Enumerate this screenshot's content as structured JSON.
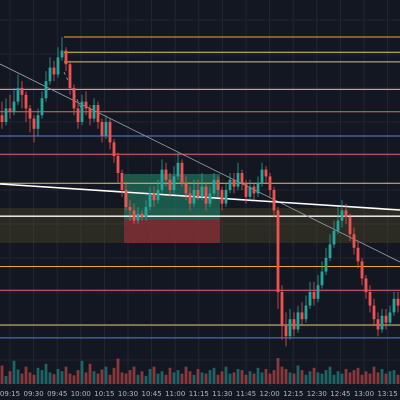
{
  "chart_data": {
    "type": "candlestick",
    "title": "",
    "xlabel": "",
    "ylabel": "",
    "x_tick_labels": [
      "09:15",
      "09:30",
      "09:45",
      "10:00",
      "10:15",
      "10:30",
      "10:45",
      "11:00",
      "11:15",
      "11:30",
      "11:45",
      "12:00",
      "12:15",
      "12:30",
      "12:45",
      "13:00",
      "13:15"
    ],
    "price_range": [
      0,
      100
    ],
    "grid": true,
    "legend": "none",
    "colors": {
      "background": "#131722",
      "grid": "#232632",
      "up": "#26a69a",
      "down": "#ef5350",
      "axis_text": "#b2b5be",
      "orange_level": "#f5a623",
      "yellow_level": "#d9c86a",
      "red_level": "#e06a6a",
      "blue_level": "#5b7fd6",
      "white_level": "#ffffff",
      "trendline": "#9aa0ad",
      "green_zone": "#1f6f5a",
      "red_zone": "#8a2f35",
      "yellow_band": "#4a4428"
    },
    "candles": [
      [
        72,
        70,
        76,
        68
      ],
      [
        70,
        74,
        77,
        69
      ],
      [
        74,
        73,
        78,
        71
      ],
      [
        73,
        76,
        80,
        72
      ],
      [
        76,
        80,
        84,
        75
      ],
      [
        80,
        78,
        82,
        74
      ],
      [
        78,
        74,
        79,
        70
      ],
      [
        74,
        71,
        75,
        67
      ],
      [
        71,
        68,
        72,
        64
      ],
      [
        68,
        72,
        74,
        66
      ],
      [
        72,
        77,
        79,
        71
      ],
      [
        77,
        82,
        85,
        76
      ],
      [
        82,
        86,
        89,
        81
      ],
      [
        86,
        84,
        88,
        82
      ],
      [
        84,
        89,
        92,
        83
      ],
      [
        89,
        91,
        95,
        88
      ],
      [
        91,
        87,
        92,
        85
      ],
      [
        87,
        80,
        88,
        78
      ],
      [
        80,
        74,
        81,
        72
      ],
      [
        74,
        70,
        76,
        68
      ],
      [
        70,
        76,
        78,
        69
      ],
      [
        76,
        74,
        79,
        72
      ],
      [
        74,
        71,
        75,
        69
      ],
      [
        71,
        75,
        77,
        70
      ],
      [
        75,
        70,
        76,
        68
      ],
      [
        70,
        66,
        71,
        64
      ],
      [
        66,
        70,
        72,
        65
      ],
      [
        70,
        64,
        71,
        62
      ],
      [
        64,
        60,
        65,
        58
      ],
      [
        60,
        55,
        61,
        52
      ],
      [
        55,
        50,
        56,
        48
      ],
      [
        50,
        45,
        52,
        44
      ],
      [
        45,
        44,
        47,
        41
      ],
      [
        44,
        41,
        46,
        40
      ],
      [
        41,
        43,
        45,
        40
      ],
      [
        43,
        42,
        44,
        41
      ],
      [
        42,
        45,
        47,
        41
      ],
      [
        45,
        49,
        51,
        44
      ],
      [
        49,
        47,
        51,
        45
      ],
      [
        47,
        50,
        53,
        46
      ],
      [
        50,
        56,
        59,
        49
      ],
      [
        56,
        53,
        58,
        51
      ],
      [
        53,
        50,
        55,
        48
      ],
      [
        50,
        54,
        57,
        49
      ],
      [
        54,
        58,
        61,
        53
      ],
      [
        58,
        52,
        59,
        51
      ],
      [
        52,
        49,
        54,
        47
      ],
      [
        49,
        46,
        51,
        44
      ],
      [
        46,
        50,
        53,
        45
      ],
      [
        50,
        48,
        53,
        47
      ],
      [
        48,
        51,
        55,
        47
      ],
      [
        51,
        46,
        52,
        44
      ],
      [
        46,
        49,
        51,
        45
      ],
      [
        49,
        53,
        55,
        48
      ],
      [
        53,
        50,
        54,
        48
      ],
      [
        50,
        46,
        51,
        44
      ],
      [
        46,
        50,
        52,
        45
      ],
      [
        50,
        53,
        55,
        49
      ],
      [
        53,
        51,
        55,
        49
      ],
      [
        51,
        55,
        58,
        50
      ],
      [
        55,
        52,
        56,
        50
      ],
      [
        52,
        48,
        53,
        46
      ],
      [
        48,
        51,
        53,
        47
      ],
      [
        51,
        49,
        52,
        47
      ],
      [
        49,
        52,
        54,
        48
      ],
      [
        52,
        56,
        58,
        51
      ],
      [
        56,
        54,
        57,
        52
      ],
      [
        54,
        50,
        55,
        48
      ],
      [
        50,
        44,
        51,
        42
      ],
      [
        44,
        20,
        45,
        15
      ],
      [
        20,
        10,
        22,
        6
      ],
      [
        10,
        7,
        14,
        4
      ],
      [
        7,
        12,
        15,
        6
      ],
      [
        12,
        9,
        14,
        7
      ],
      [
        9,
        14,
        16,
        8
      ],
      [
        14,
        12,
        17,
        10
      ],
      [
        12,
        16,
        19,
        11
      ],
      [
        16,
        20,
        23,
        15
      ],
      [
        20,
        18,
        23,
        16
      ],
      [
        18,
        22,
        25,
        17
      ],
      [
        22,
        26,
        29,
        21
      ],
      [
        26,
        30,
        33,
        25
      ],
      [
        30,
        34,
        37,
        29
      ],
      [
        34,
        38,
        41,
        33
      ],
      [
        38,
        41,
        45,
        37
      ],
      [
        41,
        44,
        47,
        39
      ],
      [
        44,
        42,
        46,
        40
      ],
      [
        42,
        37,
        43,
        35
      ],
      [
        37,
        33,
        39,
        31
      ],
      [
        33,
        29,
        35,
        27
      ],
      [
        29,
        24,
        30,
        22
      ],
      [
        24,
        20,
        25,
        18
      ],
      [
        20,
        16,
        22,
        14
      ],
      [
        16,
        12,
        18,
        10
      ],
      [
        12,
        9,
        14,
        7
      ],
      [
        9,
        13,
        15,
        8
      ],
      [
        13,
        11,
        15,
        9
      ],
      [
        11,
        14,
        16,
        10
      ],
      [
        14,
        18,
        20,
        13
      ],
      [
        18,
        16,
        20,
        14
      ]
    ],
    "volumes": [
      32,
      14,
      22,
      40,
      25,
      18,
      30,
      20,
      16,
      28,
      24,
      35,
      20,
      17,
      26,
      22,
      30,
      18,
      15,
      24,
      40,
      20,
      35,
      22,
      18,
      25,
      30,
      16,
      28,
      44,
      20,
      18,
      24,
      30,
      16,
      22,
      14,
      26,
      30,
      18,
      22,
      16,
      28,
      20,
      24,
      18,
      30,
      22,
      16,
      26,
      20,
      18,
      24,
      28,
      16,
      22,
      30,
      18,
      20,
      26,
      24,
      16,
      22,
      18,
      28,
      20,
      26,
      18,
      24,
      45,
      30,
      26,
      20,
      18,
      32,
      24,
      16,
      22,
      28,
      20,
      18,
      24,
      30,
      16,
      22,
      18,
      26,
      20,
      24,
      28,
      16,
      22,
      18,
      30,
      20,
      26,
      18,
      22,
      24,
      16
    ],
    "levels": [
      {
        "price": 95,
        "color": "orange_level"
      },
      {
        "price": 90.5,
        "color": "yellow_level"
      },
      {
        "price": 87.7,
        "color": "yellow_level"
      },
      {
        "price": 79.6,
        "color": "yellow_level"
      },
      {
        "price": 73.0,
        "color": "red_level"
      },
      {
        "price": 65.9,
        "color": "blue_level"
      },
      {
        "price": 60.5,
        "color": "red_level"
      },
      {
        "price": 52.0,
        "color": "yellow_level"
      },
      {
        "price": 42.3,
        "color": "white_level"
      },
      {
        "price": 27.5,
        "color": "orange_level"
      },
      {
        "price": 20.5,
        "color": "red_level"
      },
      {
        "price": 10.3,
        "color": "yellow_level"
      },
      {
        "price": 6.5,
        "color": "blue_level"
      }
    ]
  }
}
